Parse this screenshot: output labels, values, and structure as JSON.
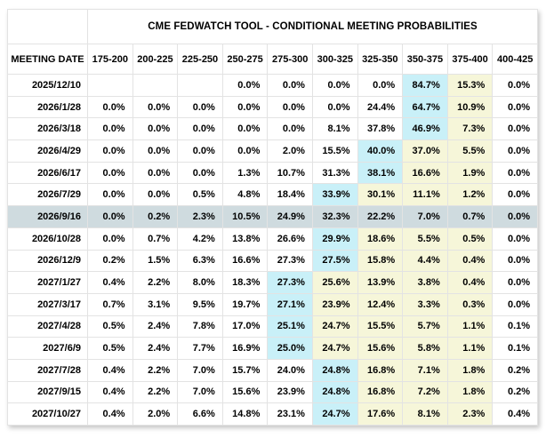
{
  "title": "CME FEDWATCH TOOL - CONDITIONAL MEETING PROBABILITIES",
  "columns": [
    "MEETING DATE",
    "175-200",
    "200-225",
    "225-250",
    "250-275",
    "275-300",
    "300-325",
    "325-350",
    "350-375",
    "375-400",
    "400-425"
  ],
  "rows": [
    {
      "date": "2025/12/10",
      "values": [
        "",
        "",
        "",
        "0.0%",
        "0.0%",
        "0.0%",
        "0.0%",
        "84.7%",
        "15.3%",
        "0.0%"
      ],
      "blue": 7,
      "yellow": [
        8
      ],
      "selected": false
    },
    {
      "date": "2026/1/28",
      "values": [
        "0.0%",
        "0.0%",
        "0.0%",
        "0.0%",
        "0.0%",
        "0.0%",
        "24.4%",
        "64.7%",
        "10.9%",
        "0.0%"
      ],
      "blue": 7,
      "yellow": [
        8
      ],
      "selected": false
    },
    {
      "date": "2026/3/18",
      "values": [
        "0.0%",
        "0.0%",
        "0.0%",
        "0.0%",
        "0.0%",
        "8.1%",
        "37.8%",
        "46.9%",
        "7.3%",
        "0.0%"
      ],
      "blue": 7,
      "yellow": [
        8
      ],
      "selected": false
    },
    {
      "date": "2026/4/29",
      "values": [
        "0.0%",
        "0.0%",
        "0.0%",
        "0.0%",
        "2.0%",
        "15.5%",
        "40.0%",
        "37.0%",
        "5.5%",
        "0.0%"
      ],
      "blue": 6,
      "yellow": [
        7,
        8
      ],
      "selected": false
    },
    {
      "date": "2026/6/17",
      "values": [
        "0.0%",
        "0.0%",
        "0.0%",
        "1.3%",
        "10.7%",
        "31.3%",
        "38.1%",
        "16.6%",
        "1.9%",
        "0.0%"
      ],
      "blue": 6,
      "yellow": [
        7,
        8
      ],
      "selected": false
    },
    {
      "date": "2026/7/29",
      "values": [
        "0.0%",
        "0.0%",
        "0.5%",
        "4.8%",
        "18.4%",
        "33.9%",
        "30.1%",
        "11.1%",
        "1.2%",
        "0.0%"
      ],
      "blue": 5,
      "yellow": [
        6,
        7,
        8
      ],
      "selected": false
    },
    {
      "date": "2026/9/16",
      "values": [
        "0.0%",
        "0.2%",
        "2.3%",
        "10.5%",
        "24.9%",
        "32.3%",
        "22.2%",
        "7.0%",
        "0.7%",
        "0.0%"
      ],
      "blue": null,
      "yellow": [],
      "selected": true
    },
    {
      "date": "2026/10/28",
      "values": [
        "0.0%",
        "0.7%",
        "4.2%",
        "13.8%",
        "26.6%",
        "29.9%",
        "18.6%",
        "5.5%",
        "0.5%",
        "0.0%"
      ],
      "blue": 5,
      "yellow": [
        6,
        7,
        8
      ],
      "selected": false
    },
    {
      "date": "2026/12/9",
      "values": [
        "0.2%",
        "1.5%",
        "6.3%",
        "16.6%",
        "27.3%",
        "27.5%",
        "15.8%",
        "4.4%",
        "0.4%",
        "0.0%"
      ],
      "blue": 5,
      "yellow": [
        6,
        7,
        8
      ],
      "selected": false
    },
    {
      "date": "2027/1/27",
      "values": [
        "0.4%",
        "2.2%",
        "8.0%",
        "18.3%",
        "27.3%",
        "25.6%",
        "13.9%",
        "3.8%",
        "0.4%",
        "0.0%"
      ],
      "blue": 4,
      "yellow": [
        5,
        6,
        7,
        8
      ],
      "selected": false
    },
    {
      "date": "2027/3/17",
      "values": [
        "0.7%",
        "3.1%",
        "9.5%",
        "19.7%",
        "27.1%",
        "23.9%",
        "12.4%",
        "3.3%",
        "0.3%",
        "0.0%"
      ],
      "blue": 4,
      "yellow": [
        5,
        6,
        7,
        8
      ],
      "selected": false
    },
    {
      "date": "2027/4/28",
      "values": [
        "0.5%",
        "2.4%",
        "7.8%",
        "17.0%",
        "25.1%",
        "24.7%",
        "15.5%",
        "5.7%",
        "1.1%",
        "0.1%"
      ],
      "blue": 4,
      "yellow": [
        5,
        6,
        7,
        8
      ],
      "selected": false
    },
    {
      "date": "2027/6/9",
      "values": [
        "0.5%",
        "2.4%",
        "7.7%",
        "16.9%",
        "25.0%",
        "24.7%",
        "15.6%",
        "5.8%",
        "1.1%",
        "0.1%"
      ],
      "blue": 4,
      "yellow": [
        5,
        6,
        7,
        8
      ],
      "selected": false
    },
    {
      "date": "2027/7/28",
      "values": [
        "0.4%",
        "2.2%",
        "7.0%",
        "15.7%",
        "24.0%",
        "24.8%",
        "16.8%",
        "7.1%",
        "1.8%",
        "0.2%"
      ],
      "blue": 5,
      "yellow": [
        6,
        7,
        8
      ],
      "selected": false
    },
    {
      "date": "2027/9/15",
      "values": [
        "0.4%",
        "2.2%",
        "7.0%",
        "15.6%",
        "23.9%",
        "24.8%",
        "16.8%",
        "7.2%",
        "1.8%",
        "0.2%"
      ],
      "blue": 5,
      "yellow": [
        6,
        7,
        8
      ],
      "selected": false
    },
    {
      "date": "2027/10/27",
      "values": [
        "0.4%",
        "2.0%",
        "6.6%",
        "14.8%",
        "23.1%",
        "24.7%",
        "17.6%",
        "8.1%",
        "2.3%",
        "0.4%"
      ],
      "blue": 5,
      "yellow": [
        6,
        7,
        8
      ],
      "selected": false
    }
  ],
  "colors": {
    "highlight_blue": "#c9f0f8",
    "highlight_yellow": "#f6f6d9",
    "selected_row": "#cfdbdf",
    "grid_border": "#e3e3e3",
    "text": "#000000"
  }
}
